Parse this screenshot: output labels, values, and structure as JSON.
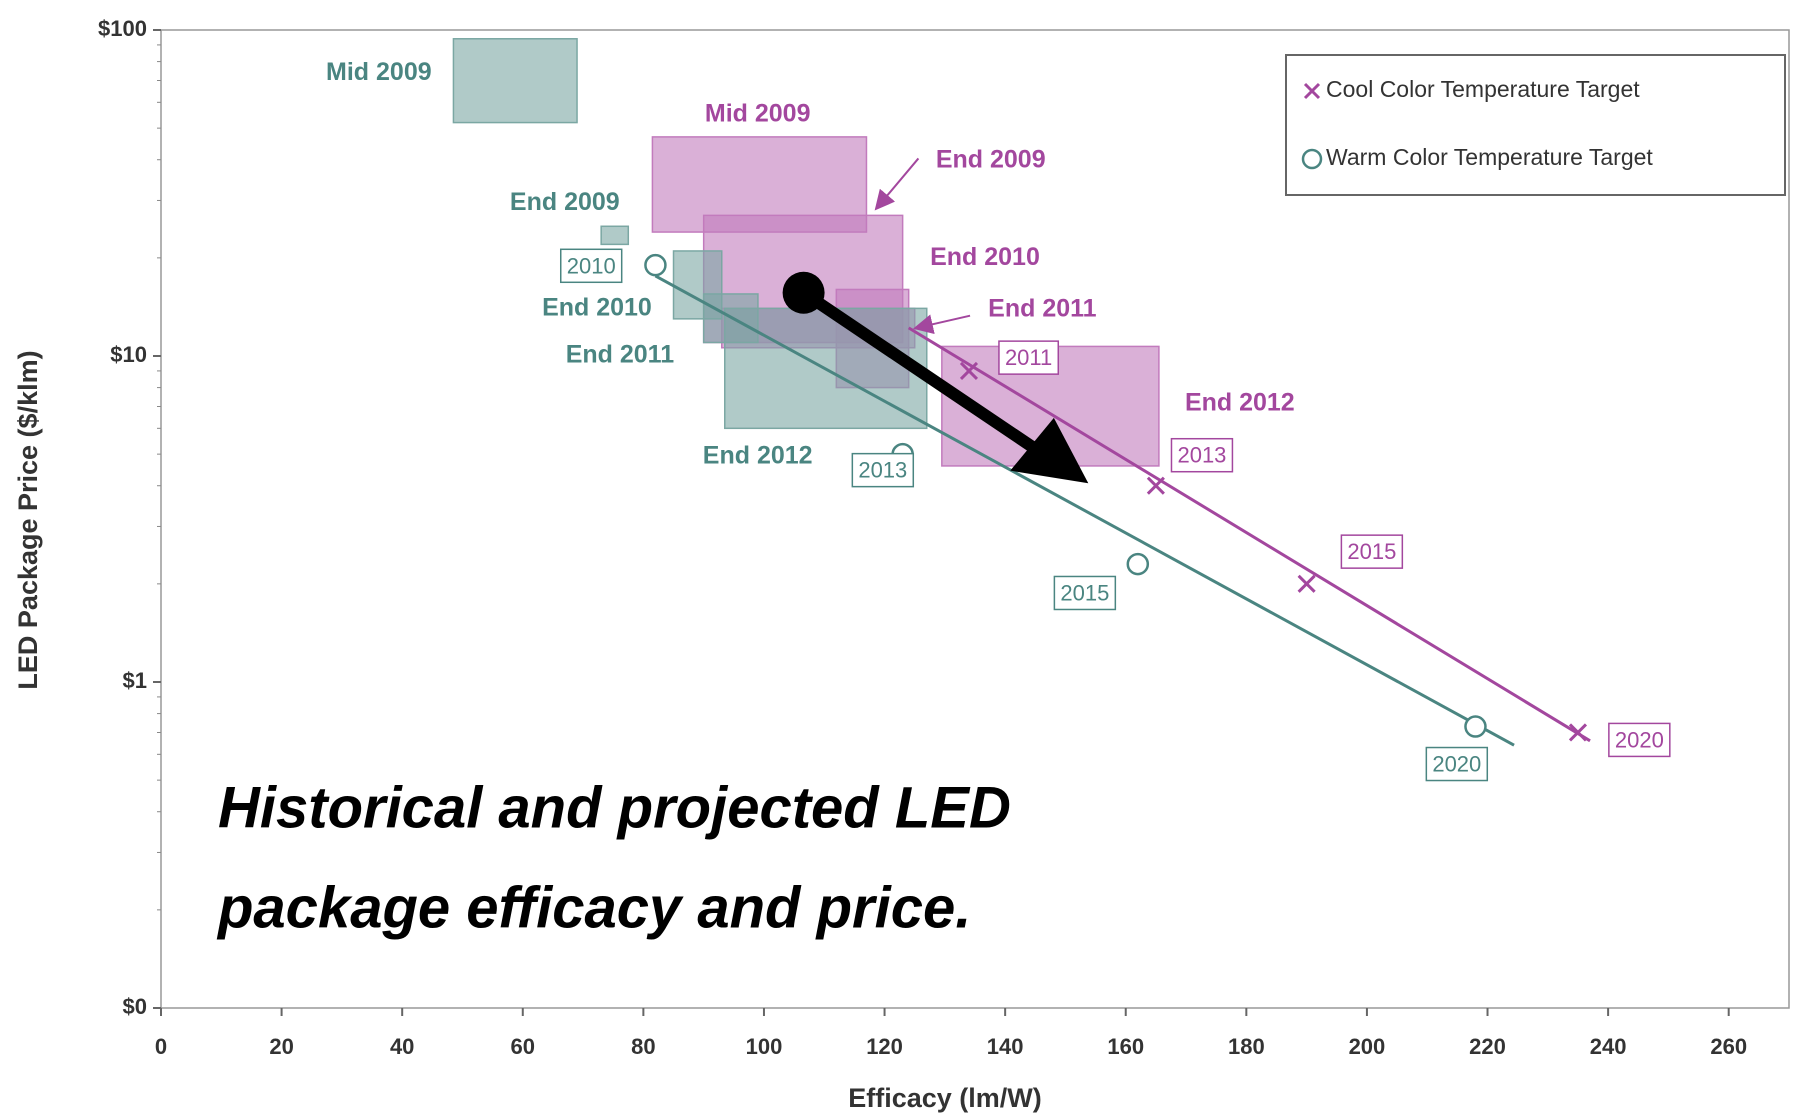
{
  "chart_data": {
    "type": "scatter",
    "x_axis_label": "Efficacy (lm/W)",
    "y_axis_label": "LED Package Price ($/klm)",
    "xlim": [
      0,
      270
    ],
    "ylim": [
      0.1,
      100
    ],
    "log_y": true,
    "xticks": [
      0,
      20,
      40,
      60,
      80,
      100,
      120,
      140,
      160,
      180,
      200,
      220,
      240,
      260
    ],
    "yticks": [
      {
        "value": 100,
        "label": "$100"
      },
      {
        "value": 10,
        "label": "$10"
      },
      {
        "value": 1,
        "label": "$1"
      },
      {
        "value": 0.1,
        "label": "$0"
      }
    ],
    "legend": "upper right",
    "caption": [
      "Historical and projected LED",
      "package efficacy and price."
    ],
    "series": [
      {
        "name": "Cool Color Temperature Target",
        "color": "#a3479e",
        "fill": "#c27bbd",
        "marker": "x",
        "x": [
          134,
          165,
          190,
          235
        ],
        "values": [
          9,
          4,
          2,
          0.7
        ],
        "point_labels": [
          "2011",
          "2013",
          "2015",
          "2020"
        ],
        "trend_x": [
          124,
          237
        ],
        "trend_y": [
          12.2,
          0.66
        ],
        "ranges": [
          {
            "label": "Mid 2009",
            "x": [
              81.5,
              117
            ],
            "y": [
              24,
              47
            ]
          },
          {
            "label": "End 2009",
            "x": [
              90,
              123
            ],
            "y": [
              11,
              27
            ]
          },
          {
            "label": "End 2010",
            "x": [
              112,
              124
            ],
            "y": [
              8,
              16
            ]
          },
          {
            "label": "End 2011",
            "x": [
              93,
              125
            ],
            "y": [
              10.6,
              14
            ]
          },
          {
            "label": "End 2012",
            "x": [
              129.5,
              165.5
            ],
            "y": [
              4.6,
              10.7
            ]
          }
        ]
      },
      {
        "name": "Warm Color Temperature Target",
        "color": "#4a8581",
        "fill": "#7ba7a3",
        "marker": "o",
        "x": [
          82,
          123,
          162,
          218
        ],
        "values": [
          19,
          5,
          2.3,
          0.73
        ],
        "point_labels": [
          "2010",
          "2013",
          "2015",
          "2020"
        ],
        "trend_x": [
          82,
          224.4
        ],
        "trend_y": [
          17.6,
          0.64
        ],
        "ranges": [
          {
            "label": "Mid 2009",
            "x": [
              48.5,
              69
            ],
            "y": [
              52,
              94
            ]
          },
          {
            "label": "End 2009",
            "x": [
              73,
              77.5
            ],
            "y": [
              22,
              25
            ]
          },
          {
            "label": "End 2010",
            "x": [
              85,
              93
            ],
            "y": [
              13,
              21
            ]
          },
          {
            "label": "End 2011",
            "x": [
              90,
              99
            ],
            "y": [
              11,
              15.5
            ]
          },
          {
            "label": "End 2012",
            "x": [
              93.5,
              127
            ],
            "y": [
              6,
              14
            ]
          }
        ]
      }
    ]
  }
}
